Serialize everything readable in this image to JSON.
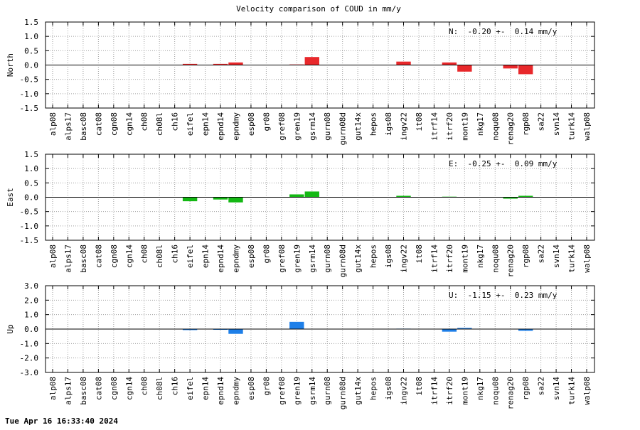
{
  "title": "Velocity comparison of COUD in mm/y",
  "footer": "Tue Apr 16 16:33:40 2024",
  "chart_data": [
    {
      "type": "bar",
      "ylabel": "North",
      "annotation": "N:  -0.20 +-  0.14 mm/y",
      "color": "#e8282b",
      "ylim": [
        -1.5,
        1.5
      ],
      "yticks": [
        -1.5,
        -1.0,
        -0.5,
        0.0,
        0.5,
        1.0,
        1.5
      ],
      "grid": true,
      "categories": [
        "alp08",
        "alps17",
        "basc08",
        "cat08",
        "cgn08",
        "cgn14",
        "ch08",
        "ch08l",
        "ch16",
        "eifel",
        "epn14",
        "epnd14",
        "epndmy",
        "esp08",
        "gr08",
        "gref08",
        "gren19",
        "gsrm14",
        "gurn08",
        "gurn08d",
        "gut14x",
        "hepos",
        "igs08",
        "ingv22",
        "it08",
        "itrf14",
        "itrf20",
        "mont19",
        "nkg17",
        "noqu08",
        "renag20",
        "rgp08",
        "sa22",
        "svn14",
        "turk14",
        "walp08"
      ],
      "values": [
        0,
        0,
        0,
        0,
        0,
        0,
        0,
        0,
        0,
        0.04,
        0,
        0.04,
        0.09,
        0,
        0,
        0,
        0.02,
        0.28,
        0,
        0,
        0,
        0,
        0,
        0.12,
        0,
        0,
        0.09,
        -0.23,
        0,
        0,
        -0.12,
        -0.32,
        0,
        0,
        0,
        0
      ]
    },
    {
      "type": "bar",
      "ylabel": "East",
      "annotation": "E:  -0.25 +-  0.09 mm/y",
      "color": "#14b814",
      "ylim": [
        -1.5,
        1.5
      ],
      "yticks": [
        -1.5,
        -1.0,
        -0.5,
        0.0,
        0.5,
        1.0,
        1.5
      ],
      "grid": true,
      "categories": [
        "alp08",
        "alps17",
        "basc08",
        "cat08",
        "cgn08",
        "cgn14",
        "ch08",
        "ch08l",
        "ch16",
        "eifel",
        "epn14",
        "epnd14",
        "epndmy",
        "esp08",
        "gr08",
        "gref08",
        "gren19",
        "gsrm14",
        "gurn08",
        "gurn08d",
        "gut14x",
        "hepos",
        "igs08",
        "ingv22",
        "it08",
        "itrf14",
        "itrf20",
        "mont19",
        "nkg17",
        "noqu08",
        "renag20",
        "rgp08",
        "sa22",
        "svn14",
        "turk14",
        "walp08"
      ],
      "values": [
        0,
        0,
        0,
        0,
        0,
        0,
        0,
        0,
        0,
        -0.14,
        0,
        -0.08,
        -0.18,
        0,
        0,
        0,
        0.1,
        0.2,
        0,
        0,
        0,
        0,
        0,
        0.05,
        0,
        0,
        0.02,
        0,
        0,
        0,
        -0.05,
        0.05,
        0,
        0,
        0,
        0
      ]
    },
    {
      "type": "bar",
      "ylabel": "Up",
      "annotation": "U:  -1.15 +-  0.23 mm/y",
      "color": "#1e7fe8",
      "ylim": [
        -3.0,
        3.0
      ],
      "yticks": [
        -3.0,
        -2.0,
        -1.0,
        0.0,
        1.0,
        2.0,
        3.0
      ],
      "grid": true,
      "categories": [
        "alp08",
        "alps17",
        "basc08",
        "cat08",
        "cgn08",
        "cgn14",
        "ch08",
        "ch08l",
        "ch16",
        "eifel",
        "epn14",
        "epnd14",
        "epndmy",
        "esp08",
        "gr08",
        "gref08",
        "gren19",
        "gsrm14",
        "gurn08",
        "gurn08d",
        "gut14x",
        "hepos",
        "igs08",
        "ingv22",
        "it08",
        "itrf14",
        "itrf20",
        "mont19",
        "nkg17",
        "noqu08",
        "renag20",
        "rgp08",
        "sa22",
        "svn14",
        "turk14",
        "walp08"
      ],
      "values": [
        0,
        0,
        0,
        0,
        0,
        0,
        0,
        0,
        0,
        -0.07,
        0,
        -0.05,
        -0.33,
        0,
        0,
        0,
        0.5,
        0,
        0,
        0,
        0,
        0,
        0,
        0.03,
        0,
        0,
        -0.18,
        0.08,
        0,
        0,
        0,
        -0.12,
        0,
        0,
        0,
        0
      ]
    }
  ]
}
